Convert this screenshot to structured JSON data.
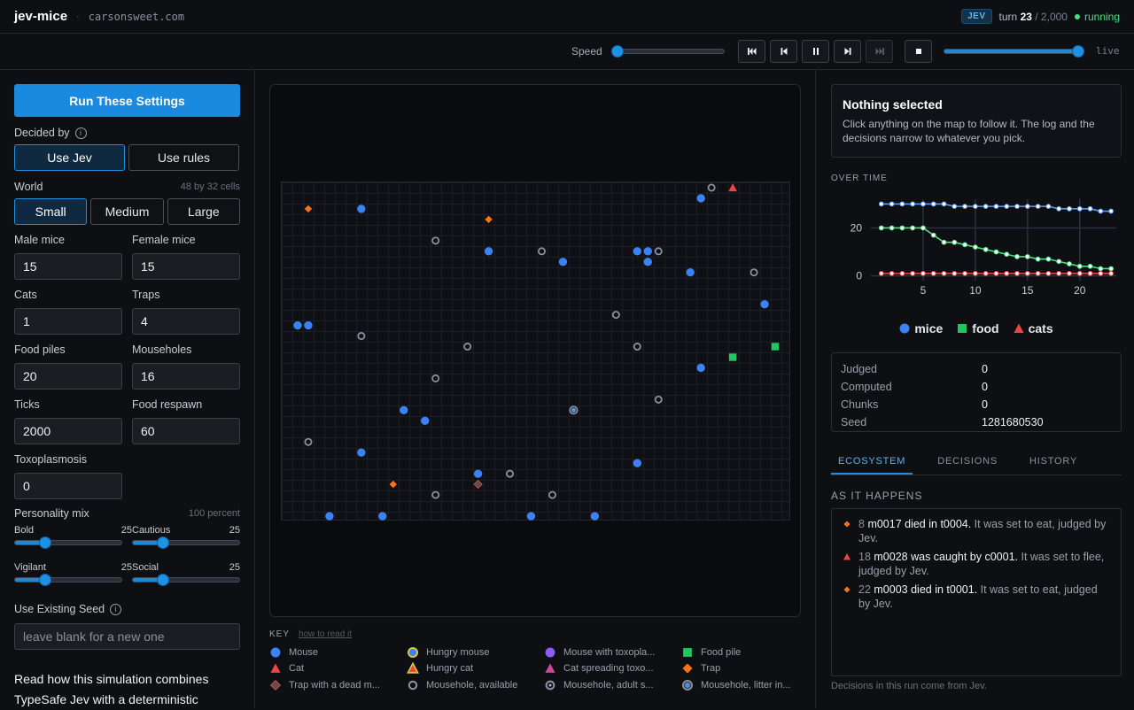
{
  "app": {
    "name": "jev-mice",
    "domain": "carsonsweet.com"
  },
  "topbar": {
    "badge": "JEV",
    "turn_prefix": "turn",
    "turn": "23",
    "turn_total": "/ 2,000",
    "status": "running"
  },
  "controls": {
    "speed_label": "Speed",
    "speed_level": 0.0,
    "buttons": [
      "skip-to-start",
      "step-back",
      "pause",
      "step-forward",
      "skip-to-end",
      "stop"
    ],
    "timeline_level": 1.0,
    "live_label": "live"
  },
  "settings": {
    "run_label": "Run These Settings",
    "decided_by_label": "Decided by",
    "decided_by_options": [
      "Use Jev",
      "Use rules"
    ],
    "decided_by_selected": "Use Jev",
    "world_label": "World",
    "world_hint": "48 by 32 cells",
    "world_options": [
      "Small",
      "Medium",
      "Large"
    ],
    "world_selected": "Small",
    "fields": [
      {
        "label": "Male mice",
        "value": "15"
      },
      {
        "label": "Female mice",
        "value": "15"
      },
      {
        "label": "Cats",
        "value": "1"
      },
      {
        "label": "Traps",
        "value": "4"
      },
      {
        "label": "Food piles",
        "value": "20"
      },
      {
        "label": "Mouseholes",
        "value": "16"
      },
      {
        "label": "Ticks",
        "value": "2000"
      },
      {
        "label": "Food respawn",
        "value": "60"
      },
      {
        "label": "Toxoplasmosis",
        "value": "0"
      }
    ],
    "personality_label": "Personality mix",
    "personality_hint": "100 percent",
    "personality": [
      {
        "label": "Bold",
        "value": "25"
      },
      {
        "label": "Cautious",
        "value": "25"
      },
      {
        "label": "Vigilant",
        "value": "25"
      },
      {
        "label": "Social",
        "value": "25"
      }
    ],
    "seed_label": "Use Existing Seed",
    "seed_placeholder": "leave blank for a new one",
    "read_link": "Read how this simulation combines TypeSafe Jev with a deterministic"
  },
  "map": {
    "grid_cols": 48,
    "grid_rows": 32,
    "entities": [
      {
        "type": "food",
        "col": 2,
        "row": 2
      },
      {
        "type": "mouse",
        "col": 7,
        "row": 2
      },
      {
        "type": "food",
        "col": 19,
        "row": 3
      },
      {
        "type": "hole",
        "col": 40,
        "row": 0
      },
      {
        "type": "cat",
        "col": 42,
        "row": 0
      },
      {
        "type": "mouse",
        "col": 39,
        "row": 1
      },
      {
        "type": "hole",
        "col": 14,
        "row": 5
      },
      {
        "type": "mouse",
        "col": 19,
        "row": 6
      },
      {
        "type": "hole",
        "col": 24,
        "row": 6
      },
      {
        "type": "mouse",
        "col": 26,
        "row": 7
      },
      {
        "type": "mouse",
        "col": 33,
        "row": 6
      },
      {
        "type": "mouse",
        "col": 34,
        "row": 6
      },
      {
        "type": "hole",
        "col": 35,
        "row": 6
      },
      {
        "type": "mouse",
        "col": 34,
        "row": 7
      },
      {
        "type": "mouse",
        "col": 38,
        "row": 8
      },
      {
        "type": "hole",
        "col": 44,
        "row": 8
      },
      {
        "type": "mouse",
        "col": 45,
        "row": 11
      },
      {
        "type": "hole",
        "col": 31,
        "row": 12
      },
      {
        "type": "mouse",
        "col": 1,
        "row": 13
      },
      {
        "type": "mouse",
        "col": 2,
        "row": 13
      },
      {
        "type": "hole",
        "col": 7,
        "row": 14
      },
      {
        "type": "hole",
        "col": 17,
        "row": 15
      },
      {
        "type": "hole",
        "col": 33,
        "row": 15
      },
      {
        "type": "food-green",
        "col": 46,
        "row": 15
      },
      {
        "type": "food-green",
        "col": 42,
        "row": 16
      },
      {
        "type": "mouse",
        "col": 39,
        "row": 17
      },
      {
        "type": "hole",
        "col": 14,
        "row": 18
      },
      {
        "type": "hole",
        "col": 35,
        "row": 20
      },
      {
        "type": "mouse",
        "col": 11,
        "row": 21
      },
      {
        "type": "hole-litter",
        "col": 27,
        "row": 21
      },
      {
        "type": "mouse",
        "col": 13,
        "row": 22
      },
      {
        "type": "hole",
        "col": 2,
        "row": 24
      },
      {
        "type": "mouse",
        "col": 7,
        "row": 25
      },
      {
        "type": "mouse",
        "col": 33,
        "row": 26
      },
      {
        "type": "mouse",
        "col": 18,
        "row": 27
      },
      {
        "type": "hole",
        "col": 21,
        "row": 27
      },
      {
        "type": "food",
        "col": 10,
        "row": 28
      },
      {
        "type": "trap-dead",
        "col": 18,
        "row": 28
      },
      {
        "type": "hole",
        "col": 14,
        "row": 29
      },
      {
        "type": "hole",
        "col": 25,
        "row": 29
      },
      {
        "type": "mouse",
        "col": 4,
        "row": 31
      },
      {
        "type": "mouse",
        "col": 9,
        "row": 31
      },
      {
        "type": "mouse",
        "col": 23,
        "row": 31
      },
      {
        "type": "mouse",
        "col": 29,
        "row": 31
      }
    ]
  },
  "key": {
    "title": "KEY",
    "how_to": "how to read it",
    "items": [
      {
        "icon": "mouse",
        "label": "Mouse"
      },
      {
        "icon": "hungry-mouse",
        "label": "Hungry mouse"
      },
      {
        "icon": "toxo-mouse",
        "label": "Mouse with toxopla..."
      },
      {
        "icon": "food-pile",
        "label": "Food pile"
      },
      {
        "icon": "cat",
        "label": "Cat"
      },
      {
        "icon": "hungry-cat",
        "label": "Hungry cat"
      },
      {
        "icon": "toxo-cat",
        "label": "Cat spreading toxo..."
      },
      {
        "icon": "trap",
        "label": "Trap"
      },
      {
        "icon": "trap-dead",
        "label": "Trap with a dead m..."
      },
      {
        "icon": "hole",
        "label": "Mousehole, available"
      },
      {
        "icon": "hole-adult",
        "label": "Mousehole, adult s..."
      },
      {
        "icon": "hole-litter",
        "label": "Mousehole, litter in..."
      }
    ]
  },
  "selection": {
    "title": "Nothing selected",
    "desc": "Click anything on the map to follow it. The log and the decisions narrow to whatever you pick."
  },
  "over_time_label": "OVER TIME",
  "chart_data": {
    "type": "line",
    "x": [
      1,
      2,
      3,
      4,
      5,
      6,
      7,
      8,
      9,
      10,
      11,
      12,
      13,
      14,
      15,
      16,
      17,
      18,
      19,
      20,
      21,
      22,
      23
    ],
    "xticks": [
      5,
      10,
      15,
      20
    ],
    "yticks": [
      0,
      20
    ],
    "xlim": [
      0,
      23.5
    ],
    "ylim": [
      -2,
      32
    ],
    "grid": true,
    "series": [
      {
        "name": "mice",
        "color": "#5b9cf5",
        "values": [
          30,
          30,
          30,
          30,
          30,
          30,
          30,
          29,
          29,
          29,
          29,
          29,
          29,
          29,
          29,
          29,
          29,
          28,
          28,
          28,
          28,
          27,
          27
        ]
      },
      {
        "name": "food",
        "color": "#4ade80",
        "values": [
          20,
          20,
          20,
          20,
          20,
          17,
          14,
          14,
          13,
          12,
          11,
          10,
          9,
          8,
          8,
          7,
          7,
          6,
          5,
          4,
          4,
          3,
          3
        ]
      },
      {
        "name": "cats",
        "color": "#f04b4b",
        "values": [
          1,
          1,
          1,
          1,
          1,
          1,
          1,
          1,
          1,
          1,
          1,
          1,
          1,
          1,
          1,
          1,
          1,
          1,
          1,
          1,
          1,
          1,
          1
        ]
      }
    ]
  },
  "legend": [
    {
      "label": "mice",
      "color": "#3b82f6"
    },
    {
      "label": "food",
      "color": "#22c55e"
    },
    {
      "label": "cats",
      "color": "#ef4444"
    }
  ],
  "stats": [
    {
      "k": "Judged",
      "v": "0"
    },
    {
      "k": "Computed",
      "v": "0"
    },
    {
      "k": "Chunks",
      "v": "0"
    },
    {
      "k": "Seed",
      "v": "1281680530"
    }
  ],
  "tabs": [
    "ECOSYSTEM",
    "DECISIONS",
    "HISTORY"
  ],
  "tab_active": "ECOSYSTEM",
  "as_it_happens": "AS IT HAPPENS",
  "log": [
    {
      "icon": "food",
      "tick": "8",
      "who": "m0017 died in t0004.",
      "rest": " It was set to eat, judged by Jev."
    },
    {
      "icon": "cat",
      "tick": "18",
      "who": "m0028 was caught by c0001.",
      "rest": " It was set to flee, judged by Jev."
    },
    {
      "icon": "food",
      "tick": "22",
      "who": "m0003 died in t0001.",
      "rest": " It was set to eat, judged by Jev."
    }
  ],
  "footer_note": "Decisions in this run come from Jev."
}
